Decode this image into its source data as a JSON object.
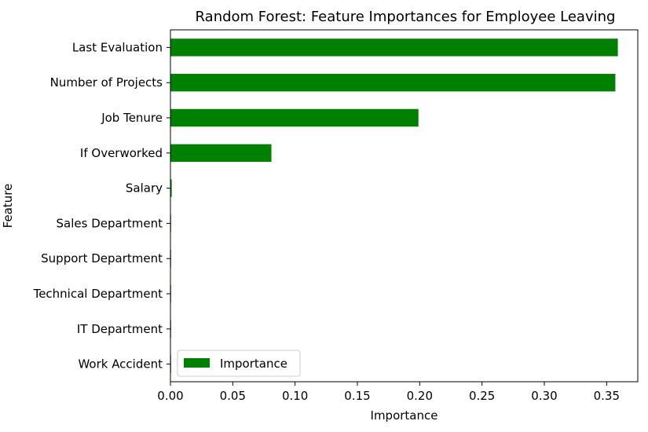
{
  "chart_data": {
    "type": "bar",
    "orientation": "horizontal",
    "title": "Random Forest: Feature Importances for Employee Leaving",
    "xlabel": "Importance",
    "ylabel": "Feature",
    "categories": [
      "Last Evaluation",
      "Number of Projects",
      "Job Tenure",
      "If Overworked",
      "Salary",
      "Sales Department",
      "Support Department",
      "Technical Department",
      "IT Department",
      "Work Accident"
    ],
    "series": [
      {
        "name": "Importance",
        "color": "#008000",
        "values": [
          0.359,
          0.357,
          0.199,
          0.081,
          0.001,
          0.0005,
          0.0004,
          0.0002,
          0.0001,
          0.0001
        ]
      }
    ],
    "xlim": [
      0,
      0.375
    ],
    "xticks": [
      0.0,
      0.05,
      0.1,
      0.15,
      0.2,
      0.25,
      0.3,
      0.35
    ],
    "xtick_labels": [
      "0.00",
      "0.05",
      "0.10",
      "0.15",
      "0.20",
      "0.25",
      "0.30",
      "0.35"
    ],
    "grid": false,
    "legend": {
      "position": "lower-left",
      "entries": [
        "Importance"
      ]
    }
  }
}
